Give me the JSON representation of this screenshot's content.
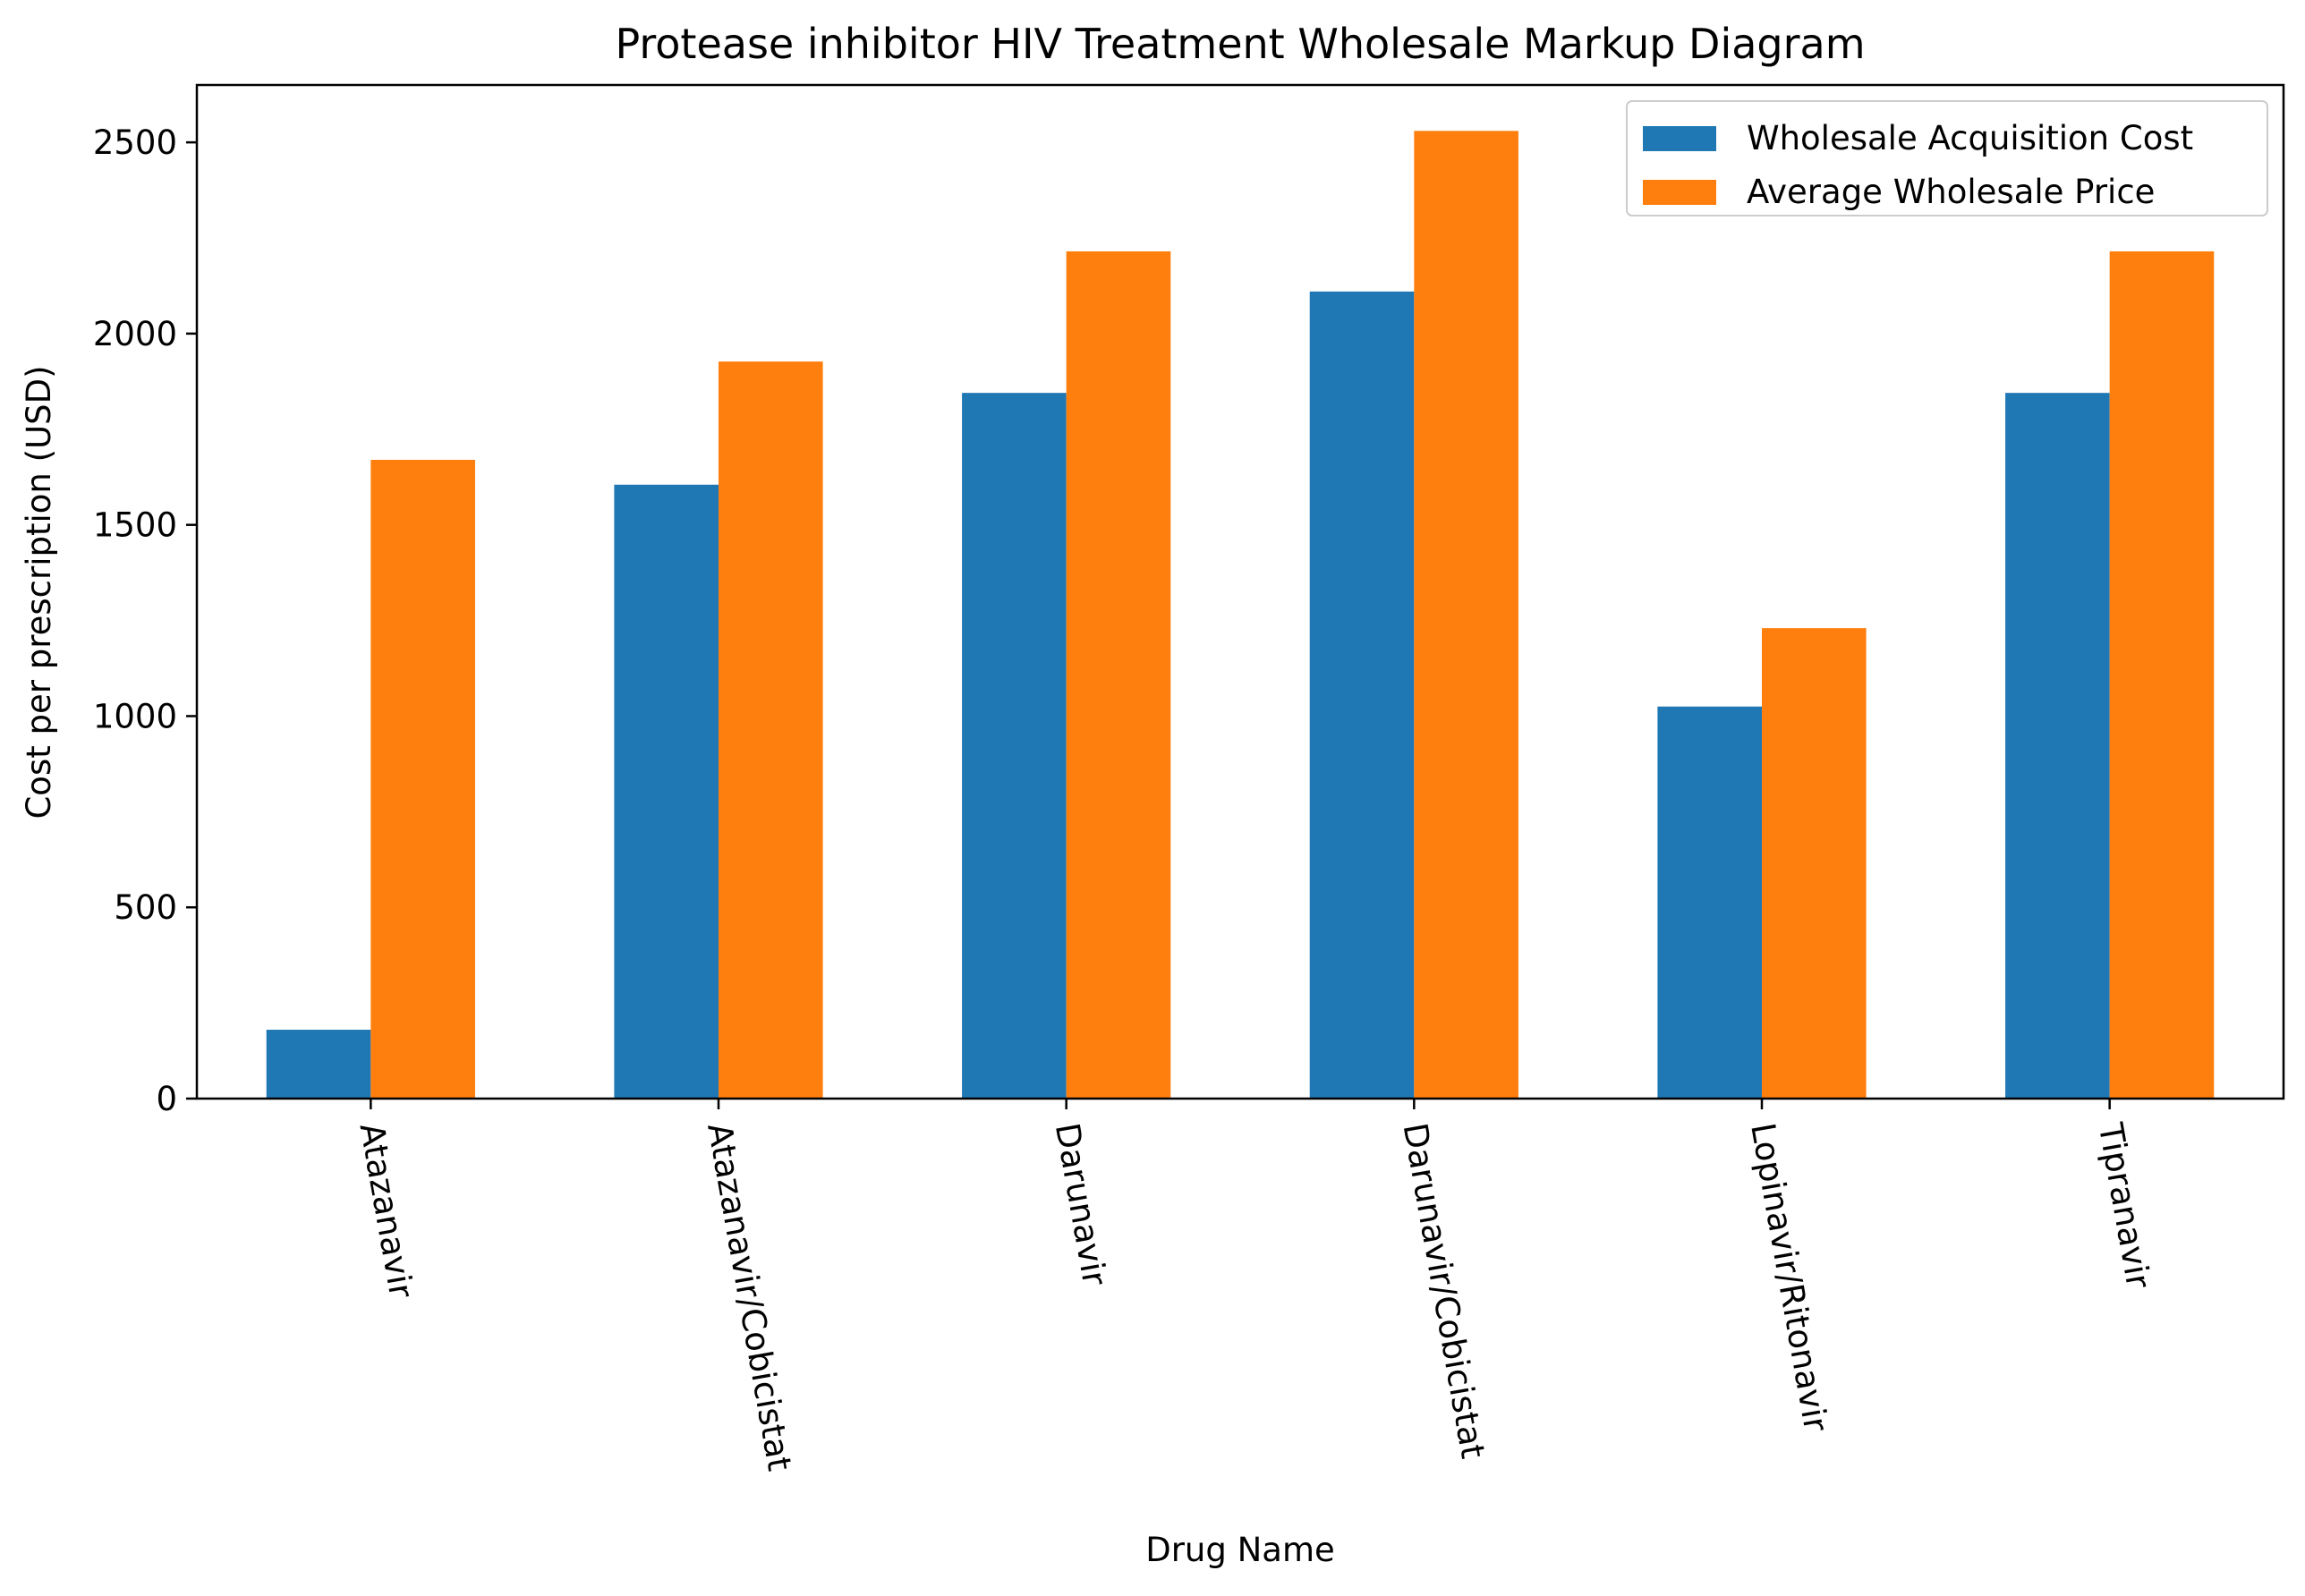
{
  "chart_data": {
    "type": "bar",
    "title": "Protease inhibitor HIV Treatment Wholesale Markup Diagram",
    "xlabel": "Drug Name",
    "ylabel": "Cost per prescription (USD)",
    "categories": [
      "Atazanavir",
      "Atazanavir/Cobicistat",
      "Darunavir",
      "Darunavir/Cobicistat",
      "Lopinavir/Ritonavir",
      "Tipranavir"
    ],
    "series": [
      {
        "name": "Wholesale Acquisition Cost",
        "color": "#1f77b4",
        "values": [
          180,
          1605,
          1845,
          2110,
          1025,
          1845
        ]
      },
      {
        "name": "Average Wholesale Price",
        "color": "#ff7f0e",
        "values": [
          1670,
          1927,
          2215,
          2530,
          1230,
          2215
        ]
      }
    ],
    "ylim": [
      0,
      2650
    ],
    "yticks": [
      0,
      500,
      1000,
      1500,
      2000,
      2500
    ],
    "xtick_rotation": -80,
    "grid": false,
    "legend": "top-right"
  }
}
